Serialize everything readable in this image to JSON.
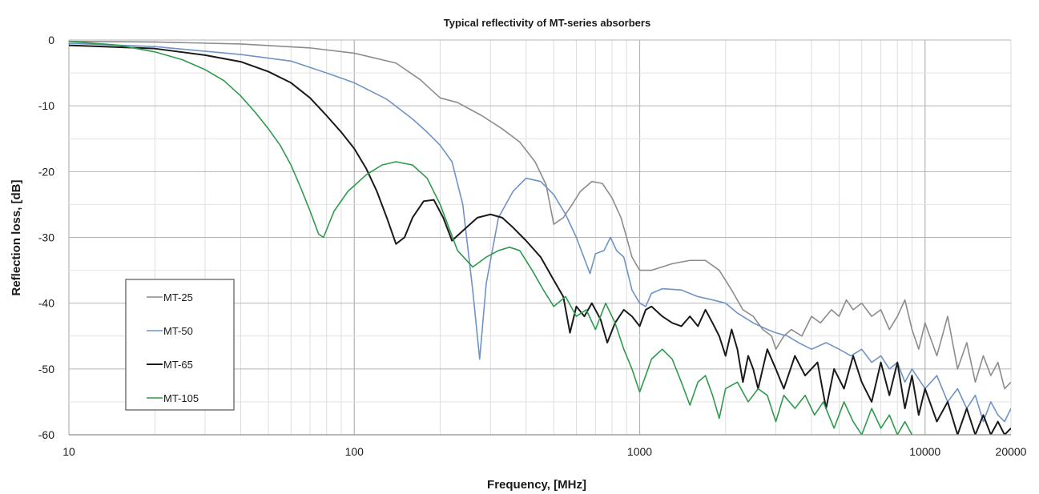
{
  "chart_data": {
    "type": "line",
    "title": "Typical reflectivity of MT-series absorbers",
    "xlabel": "Frequency, [MHz]",
    "ylabel": "Reflection loss, [dB]",
    "xscale": "log",
    "xlim": [
      10,
      20000
    ],
    "ylim": [
      -60,
      0
    ],
    "x_ticks": [
      10,
      100,
      1000,
      10000,
      20000
    ],
    "x_tick_labels": [
      "10",
      "100",
      "1000",
      "10000",
      "20000"
    ],
    "y_ticks": [
      0,
      -10,
      -20,
      -30,
      -40,
      -50,
      -60
    ],
    "y_tick_labels": [
      "0",
      "-10",
      "-20",
      "-30",
      "-40",
      "-50",
      "-60"
    ],
    "grid": true,
    "legend": "left",
    "series": [
      {
        "name": "MT-25",
        "color": "#8c8c8c",
        "points": [
          [
            10,
            -0.2
          ],
          [
            20,
            -0.3
          ],
          [
            40,
            -0.6
          ],
          [
            70,
            -1.2
          ],
          [
            100,
            -2
          ],
          [
            140,
            -3.5
          ],
          [
            170,
            -6
          ],
          [
            200,
            -8.8
          ],
          [
            230,
            -9.5
          ],
          [
            280,
            -11.5
          ],
          [
            330,
            -13.5
          ],
          [
            380,
            -15.5
          ],
          [
            430,
            -18.5
          ],
          [
            470,
            -22
          ],
          [
            500,
            -28
          ],
          [
            540,
            -27
          ],
          [
            580,
            -25
          ],
          [
            620,
            -23
          ],
          [
            680,
            -21.5
          ],
          [
            740,
            -21.8
          ],
          [
            800,
            -24
          ],
          [
            860,
            -27
          ],
          [
            900,
            -30
          ],
          [
            940,
            -33
          ],
          [
            1000,
            -35
          ],
          [
            1100,
            -35
          ],
          [
            1300,
            -34
          ],
          [
            1500,
            -33.5
          ],
          [
            1700,
            -33.5
          ],
          [
            1900,
            -35
          ],
          [
            2100,
            -38
          ],
          [
            2300,
            -41
          ],
          [
            2500,
            -42
          ],
          [
            2700,
            -44
          ],
          [
            2900,
            -45
          ],
          [
            3000,
            -47
          ],
          [
            3200,
            -45
          ],
          [
            3400,
            -44
          ],
          [
            3700,
            -45
          ],
          [
            4000,
            -42
          ],
          [
            4300,
            -43
          ],
          [
            4700,
            -41
          ],
          [
            5000,
            -42
          ],
          [
            5300,
            -39.5
          ],
          [
            5600,
            -41
          ],
          [
            6000,
            -40
          ],
          [
            6500,
            -42
          ],
          [
            7000,
            -41
          ],
          [
            7500,
            -44
          ],
          [
            8000,
            -42
          ],
          [
            8500,
            -39.5
          ],
          [
            9000,
            -44
          ],
          [
            9500,
            -47
          ],
          [
            10000,
            -43
          ],
          [
            11000,
            -48
          ],
          [
            12000,
            -42
          ],
          [
            13000,
            -50
          ],
          [
            14000,
            -46
          ],
          [
            15000,
            -52
          ],
          [
            16000,
            -48
          ],
          [
            17000,
            -51
          ],
          [
            18000,
            -49
          ],
          [
            19000,
            -53
          ],
          [
            20000,
            -52
          ]
        ]
      },
      {
        "name": "MT-50",
        "color": "#6f93c5",
        "points": [
          [
            10,
            -0.5
          ],
          [
            20,
            -1
          ],
          [
            40,
            -2.2
          ],
          [
            60,
            -3.2
          ],
          [
            80,
            -5
          ],
          [
            100,
            -6.5
          ],
          [
            130,
            -9
          ],
          [
            160,
            -12
          ],
          [
            180,
            -14
          ],
          [
            200,
            -16
          ],
          [
            220,
            -18.5
          ],
          [
            240,
            -25
          ],
          [
            260,
            -38
          ],
          [
            275,
            -48.5
          ],
          [
            290,
            -37
          ],
          [
            320,
            -27
          ],
          [
            360,
            -23
          ],
          [
            400,
            -21
          ],
          [
            450,
            -21.5
          ],
          [
            500,
            -23.5
          ],
          [
            550,
            -26.5
          ],
          [
            600,
            -30
          ],
          [
            650,
            -34
          ],
          [
            670,
            -35.5
          ],
          [
            700,
            -32.5
          ],
          [
            750,
            -32
          ],
          [
            790,
            -30
          ],
          [
            830,
            -32
          ],
          [
            880,
            -33
          ],
          [
            940,
            -38
          ],
          [
            1000,
            -40
          ],
          [
            1050,
            -40.5
          ],
          [
            1100,
            -38.5
          ],
          [
            1200,
            -37.8
          ],
          [
            1400,
            -38
          ],
          [
            1600,
            -39
          ],
          [
            1800,
            -39.5
          ],
          [
            2000,
            -40
          ],
          [
            2200,
            -41.5
          ],
          [
            2500,
            -43
          ],
          [
            2800,
            -44
          ],
          [
            3000,
            -44.5
          ],
          [
            3300,
            -45
          ],
          [
            3600,
            -46
          ],
          [
            4000,
            -47
          ],
          [
            4500,
            -46
          ],
          [
            5000,
            -47
          ],
          [
            5500,
            -48
          ],
          [
            6000,
            -47
          ],
          [
            6500,
            -49
          ],
          [
            7000,
            -48
          ],
          [
            7500,
            -50
          ],
          [
            8000,
            -49
          ],
          [
            8500,
            -52
          ],
          [
            9000,
            -50
          ],
          [
            10000,
            -53
          ],
          [
            11000,
            -51
          ],
          [
            12000,
            -55
          ],
          [
            13000,
            -53
          ],
          [
            14000,
            -56
          ],
          [
            15000,
            -54
          ],
          [
            16000,
            -58
          ],
          [
            17000,
            -55
          ],
          [
            18000,
            -57
          ],
          [
            19000,
            -58
          ],
          [
            20000,
            -56
          ]
        ]
      },
      {
        "name": "MT-65",
        "color": "#1a1a1a",
        "points": [
          [
            10,
            -0.8
          ],
          [
            20,
            -1.3
          ],
          [
            30,
            -2.3
          ],
          [
            40,
            -3.3
          ],
          [
            50,
            -4.8
          ],
          [
            60,
            -6.5
          ],
          [
            70,
            -8.8
          ],
          [
            80,
            -11.5
          ],
          [
            90,
            -14
          ],
          [
            100,
            -16.5
          ],
          [
            110,
            -19.5
          ],
          [
            120,
            -23
          ],
          [
            130,
            -27
          ],
          [
            140,
            -31
          ],
          [
            150,
            -30
          ],
          [
            160,
            -27
          ],
          [
            175,
            -24.5
          ],
          [
            190,
            -24.3
          ],
          [
            205,
            -27
          ],
          [
            220,
            -30.5
          ],
          [
            240,
            -29
          ],
          [
            270,
            -27
          ],
          [
            300,
            -26.5
          ],
          [
            330,
            -27
          ],
          [
            360,
            -28.5
          ],
          [
            400,
            -30.5
          ],
          [
            450,
            -33
          ],
          [
            500,
            -36.5
          ],
          [
            540,
            -39
          ],
          [
            570,
            -44.5
          ],
          [
            600,
            -40.5
          ],
          [
            640,
            -42
          ],
          [
            680,
            -40
          ],
          [
            730,
            -42.5
          ],
          [
            770,
            -46
          ],
          [
            820,
            -43
          ],
          [
            880,
            -41
          ],
          [
            940,
            -42
          ],
          [
            1000,
            -43.5
          ],
          [
            1050,
            -41
          ],
          [
            1100,
            -40.5
          ],
          [
            1200,
            -42
          ],
          [
            1300,
            -43
          ],
          [
            1400,
            -43.5
          ],
          [
            1500,
            -42
          ],
          [
            1600,
            -43.5
          ],
          [
            1700,
            -41
          ],
          [
            1800,
            -43
          ],
          [
            1900,
            -45
          ],
          [
            2000,
            -48
          ],
          [
            2100,
            -44
          ],
          [
            2200,
            -47
          ],
          [
            2300,
            -52
          ],
          [
            2400,
            -48
          ],
          [
            2500,
            -50
          ],
          [
            2600,
            -53
          ],
          [
            2800,
            -47
          ],
          [
            3000,
            -50
          ],
          [
            3200,
            -53
          ],
          [
            3500,
            -48
          ],
          [
            3800,
            -51
          ],
          [
            4200,
            -49
          ],
          [
            4500,
            -56
          ],
          [
            4800,
            -50
          ],
          [
            5200,
            -53
          ],
          [
            5600,
            -48
          ],
          [
            6000,
            -52
          ],
          [
            6500,
            -55
          ],
          [
            7000,
            -49
          ],
          [
            7500,
            -54
          ],
          [
            8000,
            -49
          ],
          [
            8500,
            -56
          ],
          [
            9000,
            -51
          ],
          [
            9500,
            -57
          ],
          [
            10000,
            -53
          ],
          [
            11000,
            -58
          ],
          [
            12000,
            -55
          ],
          [
            13000,
            -60
          ],
          [
            14000,
            -56
          ],
          [
            15000,
            -60
          ],
          [
            16000,
            -57
          ],
          [
            17000,
            -60
          ],
          [
            18000,
            -58
          ],
          [
            19000,
            -60
          ],
          [
            20000,
            -59
          ]
        ]
      },
      {
        "name": "MT-105",
        "color": "#2e9a4c",
        "points": [
          [
            10,
            -0.2
          ],
          [
            15,
            -0.8
          ],
          [
            20,
            -1.8
          ],
          [
            25,
            -3
          ],
          [
            30,
            -4.5
          ],
          [
            35,
            -6.2
          ],
          [
            40,
            -8.5
          ],
          [
            45,
            -11
          ],
          [
            50,
            -13.5
          ],
          [
            55,
            -16
          ],
          [
            60,
            -19
          ],
          [
            65,
            -22.5
          ],
          [
            70,
            -26
          ],
          [
            75,
            -29.5
          ],
          [
            78,
            -30
          ],
          [
            85,
            -26
          ],
          [
            95,
            -23
          ],
          [
            110,
            -20.5
          ],
          [
            125,
            -19
          ],
          [
            140,
            -18.5
          ],
          [
            160,
            -19
          ],
          [
            180,
            -21
          ],
          [
            200,
            -25
          ],
          [
            230,
            -32
          ],
          [
            260,
            -34.5
          ],
          [
            290,
            -33
          ],
          [
            320,
            -32
          ],
          [
            350,
            -31.5
          ],
          [
            380,
            -32
          ],
          [
            420,
            -35
          ],
          [
            460,
            -38
          ],
          [
            500,
            -40.5
          ],
          [
            550,
            -39
          ],
          [
            600,
            -42
          ],
          [
            650,
            -41
          ],
          [
            700,
            -44
          ],
          [
            760,
            -40
          ],
          [
            820,
            -43
          ],
          [
            880,
            -47
          ],
          [
            940,
            -50
          ],
          [
            1000,
            -53.5
          ],
          [
            1050,
            -51
          ],
          [
            1100,
            -48.5
          ],
          [
            1200,
            -47
          ],
          [
            1300,
            -48.5
          ],
          [
            1400,
            -52
          ],
          [
            1500,
            -55.5
          ],
          [
            1600,
            -52
          ],
          [
            1700,
            -51
          ],
          [
            1800,
            -54
          ],
          [
            1900,
            -57.5
          ],
          [
            2000,
            -53
          ],
          [
            2200,
            -52
          ],
          [
            2400,
            -55
          ],
          [
            2600,
            -53
          ],
          [
            2800,
            -54
          ],
          [
            3000,
            -58
          ],
          [
            3200,
            -54
          ],
          [
            3500,
            -56
          ],
          [
            3800,
            -54
          ],
          [
            4100,
            -57
          ],
          [
            4400,
            -55
          ],
          [
            4800,
            -59
          ],
          [
            5200,
            -55
          ],
          [
            5600,
            -58
          ],
          [
            6000,
            -60
          ],
          [
            6500,
            -56
          ],
          [
            7000,
            -59
          ],
          [
            7500,
            -57
          ],
          [
            8000,
            -60
          ],
          [
            8500,
            -58
          ],
          [
            9000,
            -60
          ]
        ]
      }
    ]
  }
}
